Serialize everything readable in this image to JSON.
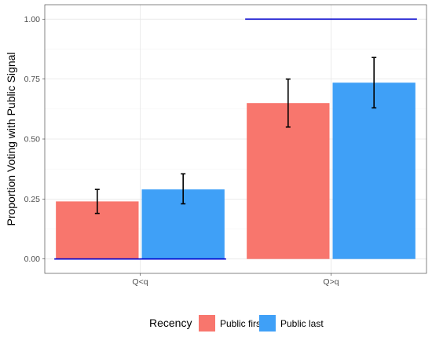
{
  "chart_data": {
    "type": "bar",
    "categories": [
      "Q<q",
      "Q>q"
    ],
    "series": [
      {
        "name": "Public first",
        "color": "#F8766D",
        "values": [
          0.24,
          0.65
        ],
        "err_low": [
          0.19,
          0.55
        ],
        "err_high": [
          0.29,
          0.75
        ]
      },
      {
        "name": "Public last",
        "color": "#3FA0F7",
        "values": [
          0.29,
          0.735
        ],
        "err_low": [
          0.23,
          0.63
        ],
        "err_high": [
          0.355,
          0.84
        ]
      }
    ],
    "reference_lines": [
      {
        "category": "Q<q",
        "value": 0.0,
        "color": "#0000CC"
      },
      {
        "category": "Q>q",
        "value": 1.0,
        "color": "#0000CC"
      }
    ],
    "ylabel": "Proportion Voting with Public Signal",
    "xlabel": "",
    "ylim": [
      -0.06,
      1.06
    ],
    "yticks": [
      "0.00",
      "0.25",
      "0.50",
      "0.75",
      "1.00"
    ],
    "ytick_values": [
      0,
      0.25,
      0.5,
      0.75,
      1.0
    ],
    "grid": true,
    "legend": {
      "title": "Recency",
      "position": "bottom"
    }
  }
}
